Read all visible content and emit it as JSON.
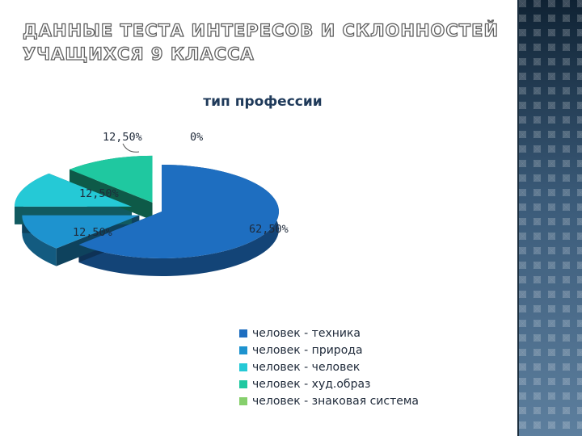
{
  "slide": {
    "title": "Данные теста интересов и склонностей учащихся 9 класса"
  },
  "chart_data": {
    "type": "pie",
    "title": "тип профессии",
    "categories": [
      "человек - техника",
      "человек - природа",
      "человек - человек",
      "человек - худ.образ",
      "человек - знаковая система"
    ],
    "values": [
      62.5,
      12.5,
      12.5,
      12.5,
      0
    ],
    "data_labels": [
      "62,50%",
      "12,50%",
      "12,50%",
      "12,50%",
      "0%"
    ],
    "colors": [
      "#1e6ec0",
      "#1e93cf",
      "#25c9d6",
      "#1fc8a0",
      "#86cf6c"
    ],
    "style": "3D exploded pie",
    "legend_position": "bottom-right"
  }
}
